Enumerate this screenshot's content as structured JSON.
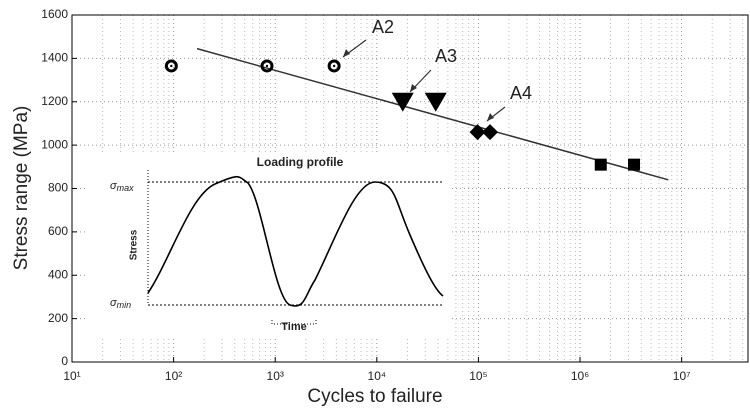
{
  "chart_data": {
    "type": "scatter",
    "x_label": "Cycles to failure",
    "y_label": "Stress range (MPa)",
    "xlim": [
      10,
      45000000
    ],
    "xscale": "log",
    "xticks": [
      {
        "value": 10,
        "label": "10¹"
      },
      {
        "value": 100,
        "label": "10²"
      },
      {
        "value": 1000,
        "label": "10³"
      },
      {
        "value": 10000,
        "label": "10⁴"
      },
      {
        "value": 100000,
        "label": "10⁵"
      },
      {
        "value": 1000000,
        "label": "10⁶"
      },
      {
        "value": 10000000,
        "label": "10⁷"
      }
    ],
    "ylim": [
      0,
      1600
    ],
    "yticks": [
      0,
      200,
      400,
      600,
      800,
      1000,
      1200,
      1400,
      1600
    ],
    "grid": true,
    "series": [
      {
        "marker": "ring",
        "color": "#000000",
        "x": [
          95,
          830,
          3800
        ],
        "values": [
          1365,
          1365,
          1365
        ]
      },
      {
        "marker": "triangle-down",
        "color": "#000000",
        "x": [
          18000,
          38000
        ],
        "values": [
          1200,
          1200
        ]
      },
      {
        "marker": "diamond",
        "color": "#000000",
        "x": [
          98000,
          130000
        ],
        "values": [
          1060,
          1060
        ]
      },
      {
        "marker": "square",
        "color": "#000000",
        "x": [
          1600000,
          3400000
        ],
        "values": [
          910,
          910
        ]
      }
    ],
    "fit_line": {
      "color": "#333333",
      "x": [
        170,
        7400000
      ],
      "values": [
        1445,
        840
      ]
    },
    "annotations": [
      "A2",
      "A3",
      "A4"
    ],
    "inset": {
      "title": "Loading profile",
      "y_label": "Stress",
      "x_label": "Time",
      "sigma": "σ",
      "max": "max",
      "min": "min"
    }
  }
}
